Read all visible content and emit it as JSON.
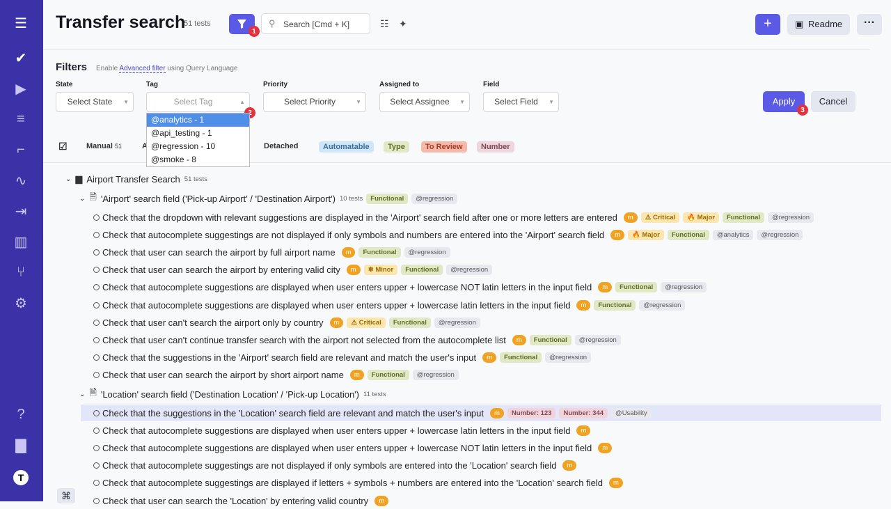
{
  "sidebar": {
    "items": [
      {
        "name": "menu-icon",
        "glyph": "☰"
      },
      {
        "name": "check-icon",
        "glyph": "✔"
      },
      {
        "name": "play-icon",
        "glyph": "▶"
      },
      {
        "name": "test-runs-icon",
        "glyph": "≡"
      },
      {
        "name": "steps-icon",
        "glyph": "⌐"
      },
      {
        "name": "pulse-icon",
        "glyph": "∿"
      },
      {
        "name": "import-icon",
        "glyph": "⇥"
      },
      {
        "name": "analytics-icon",
        "glyph": "▥"
      },
      {
        "name": "branches-icon",
        "glyph": "⑂"
      },
      {
        "name": "settings-icon",
        "glyph": "⚙"
      }
    ],
    "bottom": [
      {
        "name": "help-icon",
        "glyph": "?"
      },
      {
        "name": "folder-icon",
        "glyph": "▇"
      },
      {
        "name": "profile-icon",
        "glyph": "T"
      }
    ]
  },
  "header": {
    "title": "Transfer search",
    "count": "51 tests",
    "filter_badge": "1",
    "search_placeholder": "Search [Cmd + K]",
    "plus": "+",
    "readme": "Readme",
    "more": "···"
  },
  "filters": {
    "title": "Filters",
    "hint_pre": "Enable ",
    "hint_link": "Advanced filter",
    "hint_post": " using Query Language",
    "state_label": "State",
    "state_placeholder": "Select State",
    "tag_label": "Tag",
    "tag_placeholder": "Select Tag",
    "tag_badge": "2",
    "tag_options": [
      "@analytics - 1",
      "@api_testing - 1",
      "@regression - 10",
      "@smoke - 8"
    ],
    "priority_label": "Priority",
    "priority_placeholder": "Select Priority",
    "assigned_label": "Assigned to",
    "assigned_placeholder": "Select Assignee",
    "field_label": "Field",
    "field_placeholder": "Select Field",
    "apply": "Apply",
    "apply_badge": "3",
    "cancel": "Cancel"
  },
  "tabs": {
    "manual": "Manual",
    "manual_count": "51",
    "auto_partial": "A",
    "detached": "Detached",
    "automatable": "Automatable",
    "type": "Type",
    "to_review": "To Review",
    "number": "Number"
  },
  "tree": {
    "suite": {
      "name": "Airport Transfer Search",
      "count": "51 tests"
    },
    "groups": [
      {
        "name": "'Airport' search field ('Pick-up Airport' / 'Destination Airport')",
        "count": "10 tests",
        "tags": [
          {
            "t": "Functional",
            "c": "func"
          },
          {
            "t": "@regression",
            "c": "tag"
          }
        ],
        "tests": [
          {
            "text": "Check that the dropdown with relevant suggestions are displayed in the 'Airport' search field after one or more letters are entered",
            "tags": [
              {
                "t": "m",
                "c": "m"
              },
              {
                "t": "⚠ Critical",
                "c": "crit"
              },
              {
                "t": "🔥 Major",
                "c": "maj"
              },
              {
                "t": "Functional",
                "c": "func"
              },
              {
                "t": "@regression",
                "c": "tag"
              }
            ]
          },
          {
            "text": "Check that autocomplete suggestings are not displayed if only symbols and numbers are entered into the 'Airport' search field",
            "tags": [
              {
                "t": "m",
                "c": "m"
              },
              {
                "t": "🔥 Major",
                "c": "maj"
              },
              {
                "t": "Functional",
                "c": "func"
              },
              {
                "t": "@analytics",
                "c": "tag"
              },
              {
                "t": "@regression",
                "c": "tag"
              }
            ]
          },
          {
            "text": "Check that user can search the airport by full airport name",
            "tags": [
              {
                "t": "m",
                "c": "m"
              },
              {
                "t": "Functional",
                "c": "func"
              },
              {
                "t": "@regression",
                "c": "tag"
              }
            ]
          },
          {
            "text": "Check that user can search the airport by entering valid city",
            "tags": [
              {
                "t": "m",
                "c": "m"
              },
              {
                "t": "❄ Minor",
                "c": "min"
              },
              {
                "t": "Functional",
                "c": "func"
              },
              {
                "t": "@regression",
                "c": "tag"
              }
            ]
          },
          {
            "text": "Check that autocomplete suggestions are displayed when user enters upper + lowercase NOT latin letters in the input field",
            "tags": [
              {
                "t": "m",
                "c": "m"
              },
              {
                "t": "Functional",
                "c": "func"
              },
              {
                "t": "@regression",
                "c": "tag"
              }
            ]
          },
          {
            "text": "Check that autocomplete suggestions are displayed when user enters upper + lowercase latin letters in the input field",
            "tags": [
              {
                "t": "m",
                "c": "m"
              },
              {
                "t": "Functional",
                "c": "func"
              },
              {
                "t": "@regression",
                "c": "tag"
              }
            ]
          },
          {
            "text": "Check that user can't search the airport only by country",
            "tags": [
              {
                "t": "m",
                "c": "m"
              },
              {
                "t": "⚠ Critical",
                "c": "crit"
              },
              {
                "t": "Functional",
                "c": "func"
              },
              {
                "t": "@regression",
                "c": "tag"
              }
            ]
          },
          {
            "text": "Check that user can't continue transfer search with the airport not selected from the autocomplete list",
            "tags": [
              {
                "t": "m",
                "c": "m"
              },
              {
                "t": "Functional",
                "c": "func"
              },
              {
                "t": "@regression",
                "c": "tag"
              }
            ]
          },
          {
            "text": "Check that the suggestions in the 'Airport' search field are relevant and match the user's input",
            "tags": [
              {
                "t": "m",
                "c": "m"
              },
              {
                "t": "Functional",
                "c": "func"
              },
              {
                "t": "@regression",
                "c": "tag"
              }
            ]
          },
          {
            "text": "Check that user can search the airport by short airport name",
            "tags": [
              {
                "t": "m",
                "c": "m"
              },
              {
                "t": "Functional",
                "c": "func"
              },
              {
                "t": "@regression",
                "c": "tag"
              }
            ]
          }
        ]
      },
      {
        "name": "'Location' search field ('Destination Location' / 'Pick-up Location')",
        "count": "11 tests",
        "tags": [],
        "tests": [
          {
            "text": "Check that the suggestions in the 'Location' search field are relevant and match the user's input",
            "selected": true,
            "tags": [
              {
                "t": "m",
                "c": "m"
              },
              {
                "t": "Number: 123",
                "c": "num"
              },
              {
                "t": "Number: 344",
                "c": "num"
              },
              {
                "t": "@Usability",
                "c": "tag"
              }
            ]
          },
          {
            "text": "Check that autocomplete suggestions are displayed when user enters upper + lowercase latin letters in the input field",
            "tags": [
              {
                "t": "m",
                "c": "m"
              }
            ]
          },
          {
            "text": "Check that autocomplete suggestions are displayed when user enters upper + lowercase NOT latin letters in the input field",
            "tags": [
              {
                "t": "m",
                "c": "m"
              }
            ]
          },
          {
            "text": "Check that autocomplete suggestings are not displayed if only symbols are entered into the 'Location' search field",
            "tags": [
              {
                "t": "m",
                "c": "m"
              }
            ]
          },
          {
            "text": "Check that autocomplete suggestings are displayed if letters + symbols + numbers are entered into the 'Location' search field",
            "tags": [
              {
                "t": "m",
                "c": "m"
              }
            ]
          },
          {
            "text": "Check that user can search the 'Location' by entering valid country",
            "tags": [
              {
                "t": "m",
                "c": "m"
              }
            ]
          }
        ]
      }
    ]
  },
  "cmd_key": "⌘"
}
